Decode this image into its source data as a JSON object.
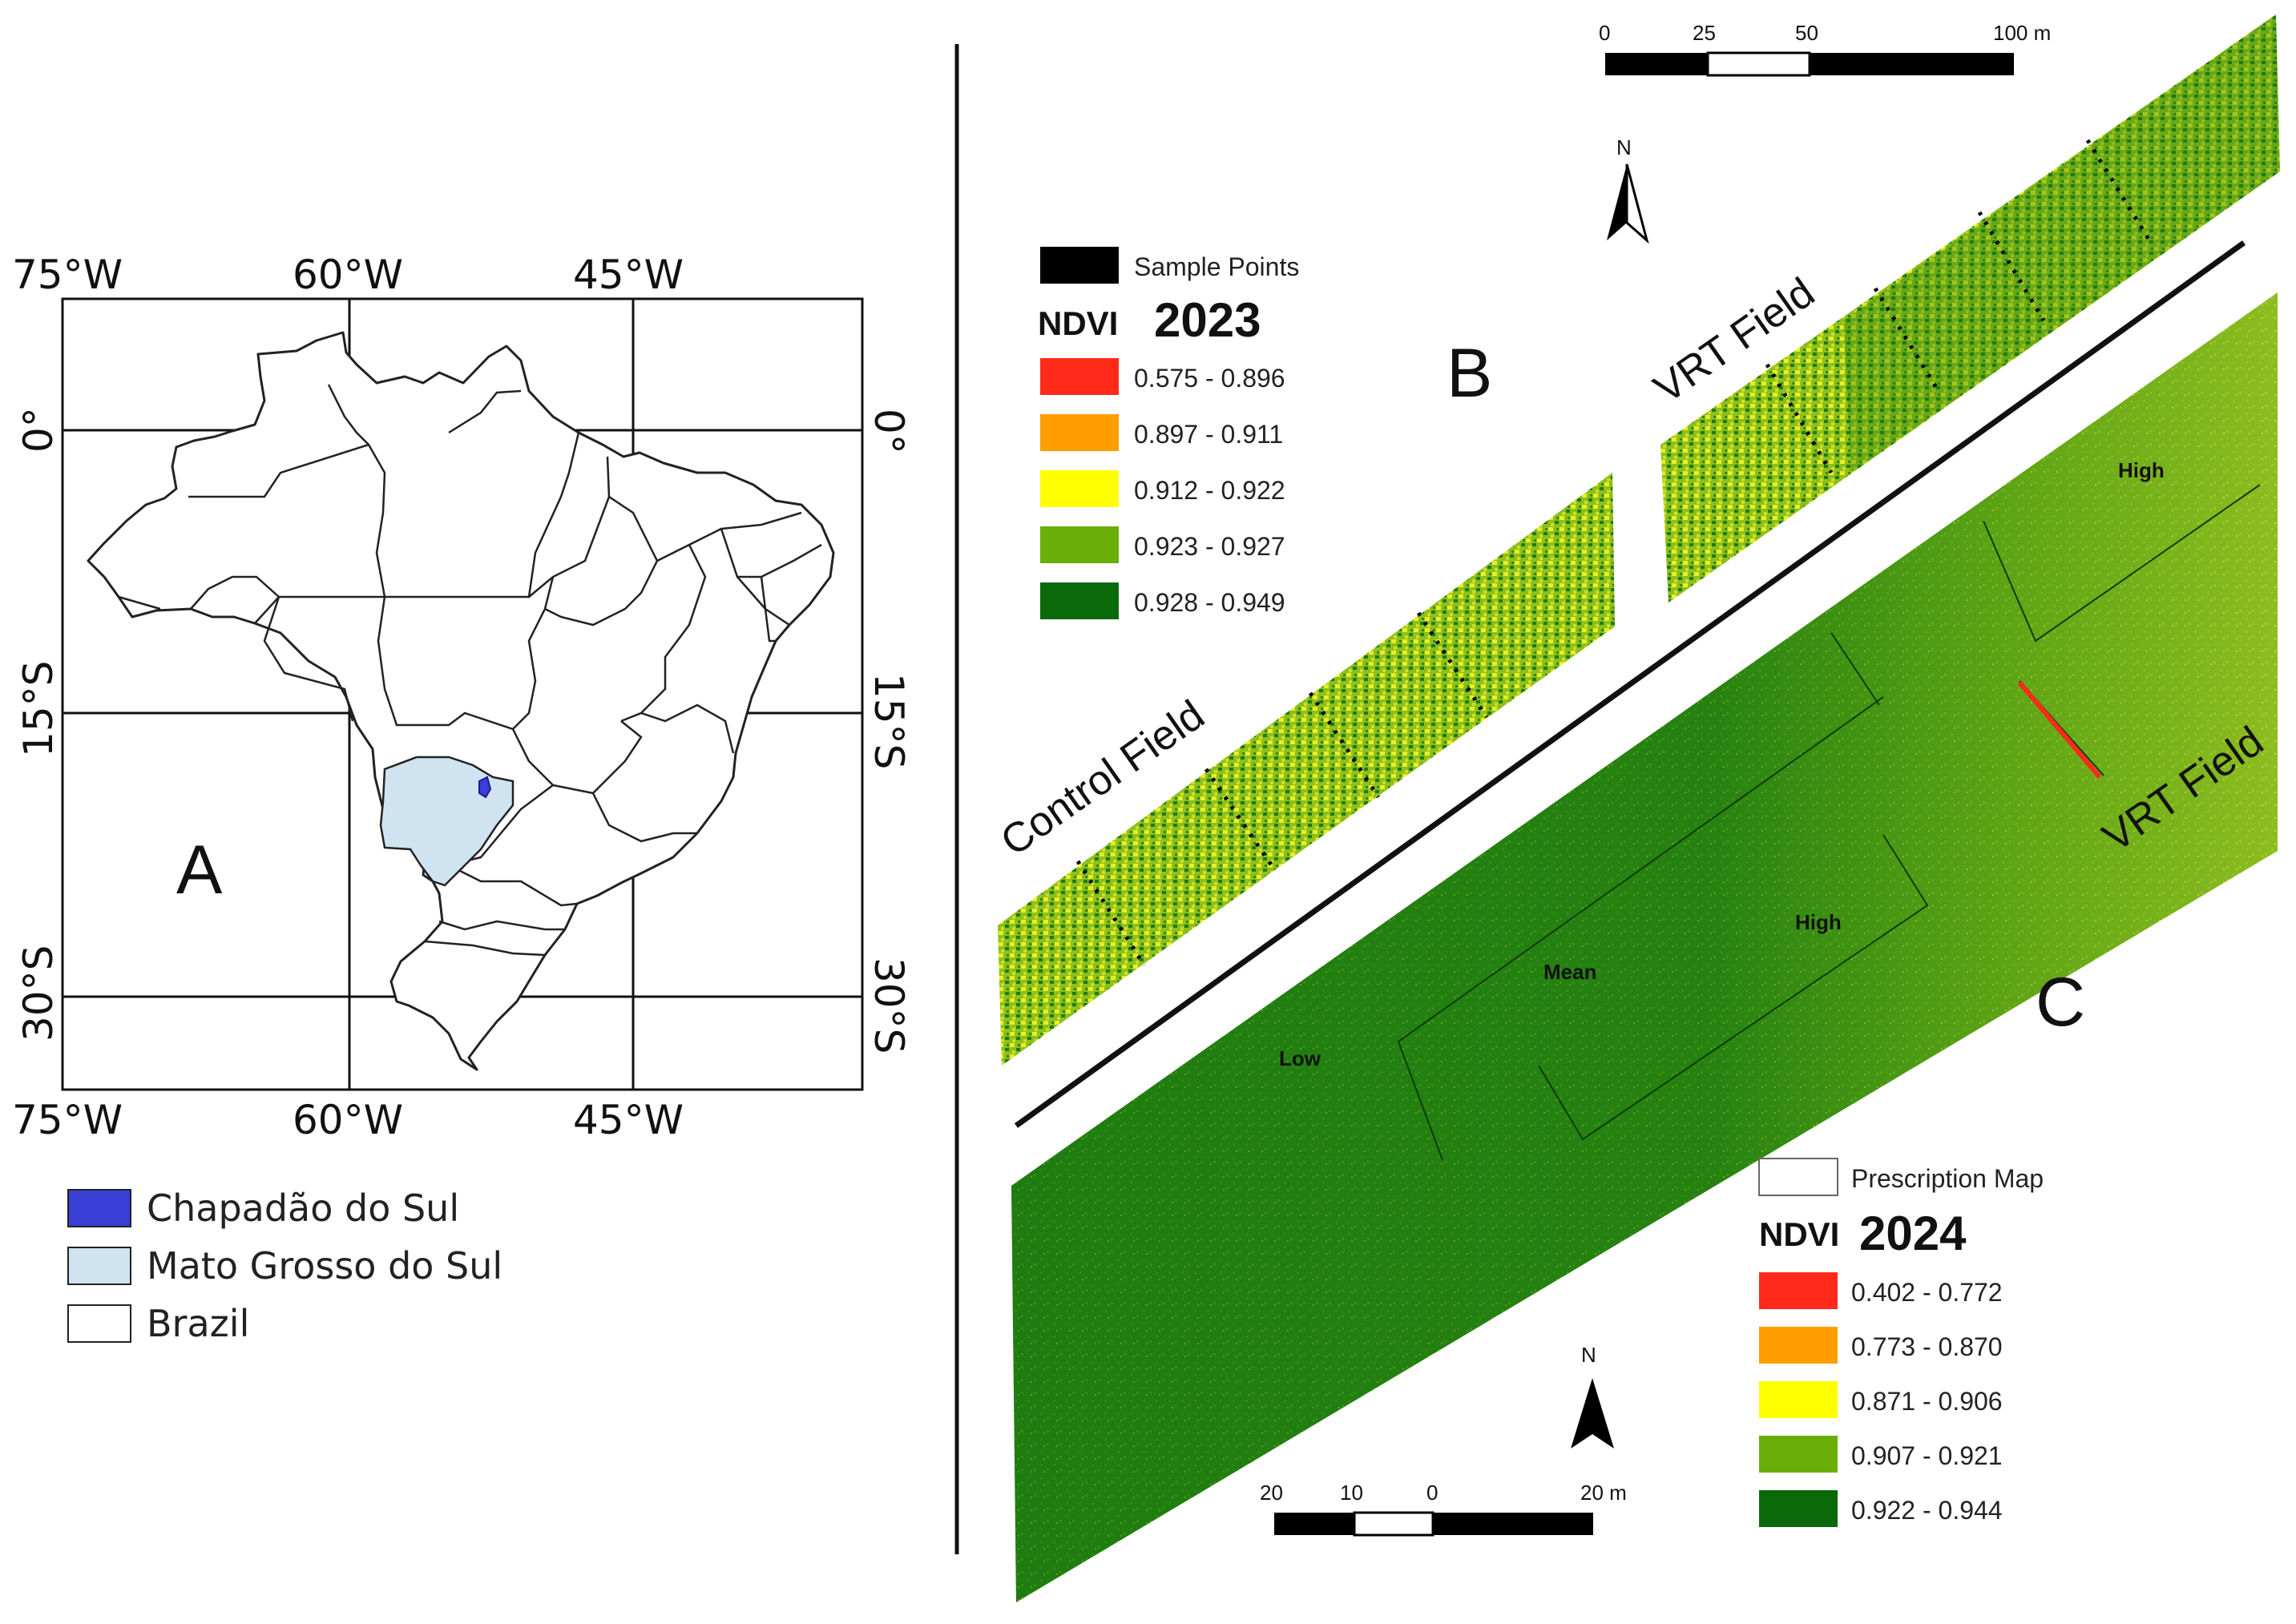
{
  "panel_a": {
    "letter": "A",
    "top_lon_labels": [
      "75°W",
      "60°W",
      "45°W"
    ],
    "bottom_lon_labels": [
      "75°W",
      "60°W",
      "45°W"
    ],
    "left_lat_labels": [
      "0°",
      "15°S",
      "30°S"
    ],
    "right_lat_labels": [
      "0°",
      "15°S",
      "30°S"
    ],
    "legend": [
      {
        "label": "Chapadão do Sul",
        "color": "#3a3fd6"
      },
      {
        "label": "Mato Grosso do Sul",
        "color": "#cfe4f0"
      },
      {
        "label": "Brazil",
        "color": "#ffffff"
      }
    ]
  },
  "panel_b": {
    "letter": "B",
    "field_labels": [
      "Control Field",
      "VRT Field"
    ],
    "legend_points_label": "Sample Points",
    "legend_index": "NDVI",
    "legend_year": "2023",
    "classes": [
      {
        "label": "0.575 - 0.896",
        "color": "#ff2a1a"
      },
      {
        "label": "0.897 - 0.911",
        "color": "#ff9e00"
      },
      {
        "label": "0.912 - 0.922",
        "color": "#ffff00"
      },
      {
        "label": "0.923 - 0.927",
        "color": "#6aae08"
      },
      {
        "label": "0.928 - 0.949",
        "color": "#0a6a0a"
      }
    ],
    "scale_labels": [
      "0",
      "25",
      "50",
      "100 m"
    ],
    "north": "N"
  },
  "panel_c": {
    "letter": "C",
    "field_label": "VRT Field",
    "zones": [
      "Low",
      "Mean",
      "High",
      "High"
    ],
    "legend_prescription_label": "Prescription Map",
    "legend_index": "NDVI",
    "legend_year": "2024",
    "classes": [
      {
        "label": "0.402 - 0.772",
        "color": "#ff2a1a"
      },
      {
        "label": "0.773 - 0.870",
        "color": "#ff9e00"
      },
      {
        "label": "0.871 - 0.906",
        "color": "#ffff00"
      },
      {
        "label": "0.907 - 0.921",
        "color": "#6aae08"
      },
      {
        "label": "0.922 - 0.944",
        "color": "#0a6a0a"
      }
    ],
    "scale_labels": [
      "20",
      "10",
      "0",
      "20 m"
    ],
    "north": "N"
  }
}
